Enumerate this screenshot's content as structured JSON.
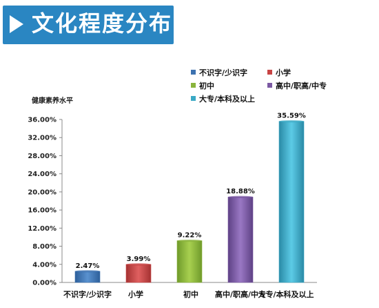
{
  "header": {
    "title": "文化程度分布"
  },
  "chart_data": {
    "type": "bar",
    "ylabel": "健康素养水平",
    "ylim": [
      0,
      36
    ],
    "yticks": [
      "0.00%",
      "4.00%",
      "8.00%",
      "12.00%",
      "16.00%",
      "20.00%",
      "24.00%",
      "28.00%",
      "32.00%",
      "36.00%"
    ],
    "categories": [
      "不识字/少识字",
      "小学",
      "初中",
      "高中/职高/中专",
      "大专/本科及以上"
    ],
    "values": [
      2.47,
      3.99,
      9.22,
      18.88,
      35.59
    ],
    "labels": [
      "2.47%",
      "3.99%",
      "9.22%",
      "18.88%",
      "35.59%"
    ],
    "colors": [
      "#3d72b0",
      "#c84444",
      "#8ab43c",
      "#7b59a3",
      "#3aa9c5"
    ],
    "legend": {
      "placement": "top-right"
    }
  }
}
